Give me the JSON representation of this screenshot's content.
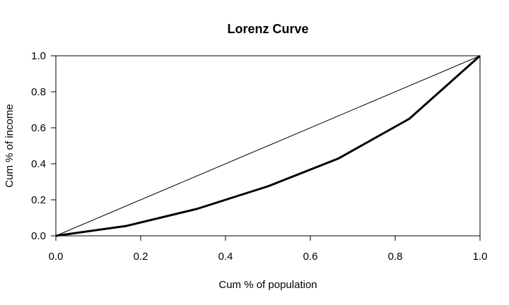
{
  "chart_data": {
    "type": "line",
    "title": "Lorenz Curve",
    "xlabel": "Cum % of population",
    "ylabel": "Cum % of income",
    "xlim": [
      0,
      1
    ],
    "ylim": [
      0,
      1
    ],
    "grid": false,
    "x_ticks": [
      "0.0",
      "0.2",
      "0.4",
      "0.6",
      "0.8",
      "1.0"
    ],
    "y_ticks": [
      "0.0",
      "0.2",
      "0.4",
      "0.6",
      "0.8",
      "1.0"
    ],
    "series": [
      {
        "x": [
          0,
          0.1667,
          0.3333,
          0.5,
          0.6667,
          0.8333,
          1.0
        ],
        "y": [
          0,
          0.055,
          0.15,
          0.275,
          0.43,
          0.65,
          1.0
        ],
        "color": "#000000",
        "weight": "thick"
      },
      {
        "x": [
          0,
          1
        ],
        "y": [
          0,
          1
        ],
        "color": "#000000",
        "weight": "thin"
      }
    ]
  }
}
